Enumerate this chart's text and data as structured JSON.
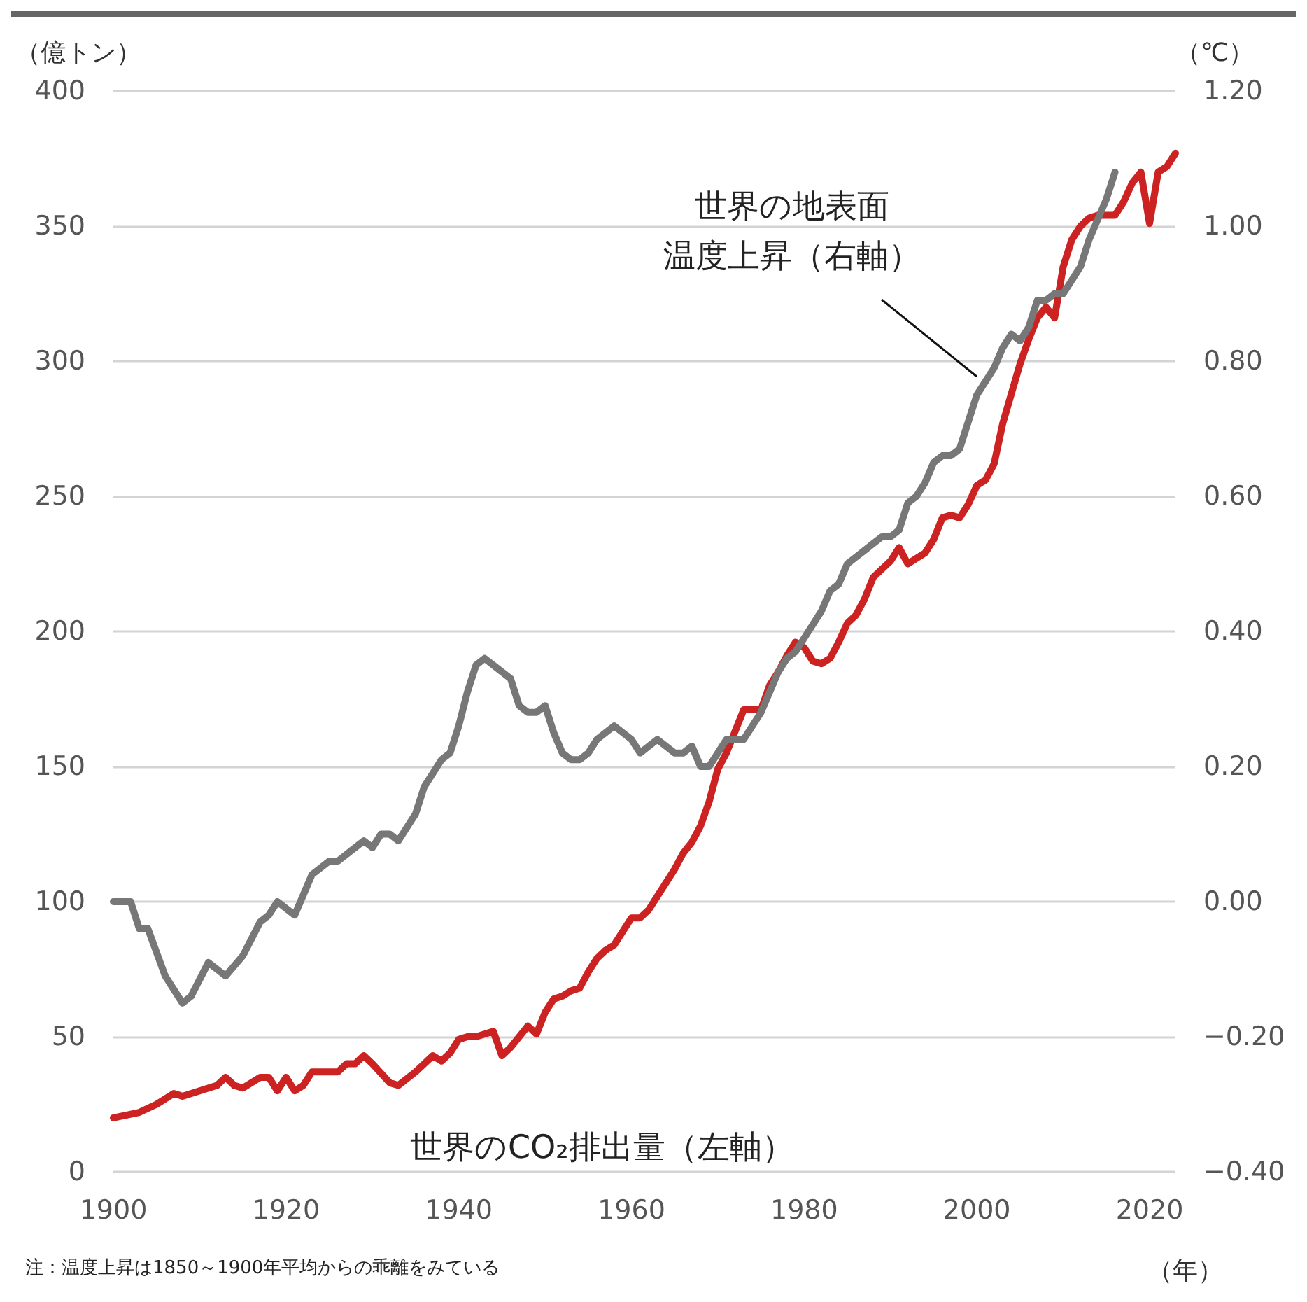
{
  "chart_data": {
    "type": "line",
    "xlabel": "（年）",
    "ylabel": "（億トン）",
    "y2label": "（℃）",
    "annotations": [
      "世界の地表面温度上昇（右軸）",
      "世界のCO₂排出量（左軸）",
      "注：温度上昇は1850～1900年平均からの乖離をみている"
    ],
    "xlim": [
      1900,
      2023
    ],
    "xticks": [
      1900,
      1920,
      1940,
      1960,
      1980,
      2000,
      2020
    ],
    "ylim": [
      0,
      400
    ],
    "yticks": [
      0,
      50,
      100,
      150,
      200,
      250,
      300,
      350,
      400
    ],
    "y2lim": [
      -0.4,
      1.2
    ],
    "y2ticks": [
      {
        "value": -0.4,
        "label": "−0.40"
      },
      {
        "value": -0.2,
        "label": "−0.20"
      },
      {
        "value": 0,
        "label": "0.00"
      },
      {
        "value": 0.2,
        "label": "0.20"
      },
      {
        "value": 0.4,
        "label": "0.40"
      },
      {
        "value": 0.6,
        "label": "0.60"
      },
      {
        "value": 0.8,
        "label": "0.80"
      },
      {
        "value": 1.0,
        "label": "1.00"
      },
      {
        "value": 1.2,
        "label": "1.20"
      }
    ],
    "grid": "y",
    "marker": "none",
    "line_style": "solid",
    "series": [
      {
        "color": "#cc2222",
        "axis": "y",
        "x": [
          1900,
          1903,
          1905,
          1907,
          1908,
          1910,
          1912,
          1913,
          1914,
          1915,
          1917,
          1918,
          1919,
          1920,
          1921,
          1922,
          1923,
          1925,
          1926,
          1927,
          1928,
          1929,
          1930,
          1932,
          1933,
          1935,
          1937,
          1938,
          1939,
          1940,
          1941,
          1942,
          1944,
          1945,
          1946,
          1948,
          1949,
          1950,
          1951,
          1952,
          1953,
          1954,
          1955,
          1956,
          1957,
          1958,
          1959,
          1960,
          1961,
          1962,
          1963,
          1964,
          1965,
          1966,
          1967,
          1968,
          1969,
          1970,
          1971,
          1972,
          1973,
          1974,
          1975,
          1976,
          1977,
          1978,
          1979,
          1980,
          1981,
          1982,
          1983,
          1984,
          1985,
          1986,
          1987,
          1988,
          1989,
          1990,
          1991,
          1992,
          1993,
          1994,
          1995,
          1996,
          1997,
          1998,
          1999,
          2000,
          2001,
          2002,
          2003,
          2004,
          2005,
          2006,
          2007,
          2008,
          2009,
          2010,
          2011,
          2012,
          2013,
          2014,
          2015,
          2016,
          2017,
          2018,
          2019,
          2020,
          2021,
          2022,
          2023
        ],
        "values": [
          20,
          22,
          25,
          29,
          28,
          30,
          32,
          35,
          32,
          31,
          35,
          35,
          30,
          35,
          30,
          32,
          37,
          37,
          37,
          40,
          40,
          43,
          40,
          33,
          32,
          37,
          43,
          41,
          44,
          49,
          50,
          50,
          52,
          43,
          46,
          54,
          51,
          59,
          64,
          65,
          67,
          68,
          74,
          79,
          82,
          84,
          89,
          94,
          94,
          97,
          102,
          107,
          112,
          118,
          122,
          128,
          137,
          149,
          155,
          163,
          171,
          171,
          171,
          180,
          185,
          191,
          196,
          194,
          189,
          188,
          190,
          196,
          203,
          206,
          212,
          220,
          223,
          226,
          231,
          225,
          227,
          229,
          234,
          242,
          243,
          242,
          247,
          254,
          256,
          262,
          277,
          288,
          299,
          308,
          316,
          320,
          316,
          335,
          345,
          350,
          353,
          354,
          354,
          354,
          359,
          366,
          370,
          351,
          370,
          372,
          377
        ]
      },
      {
        "color": "#777777",
        "axis": "y2",
        "x": [
          1900,
          1902,
          1903,
          1904,
          1906,
          1908,
          1909,
          1911,
          1913,
          1915,
          1917,
          1918,
          1919,
          1921,
          1923,
          1925,
          1926,
          1928,
          1929,
          1930,
          1931,
          1932,
          1933,
          1935,
          1936,
          1938,
          1939,
          1940,
          1941,
          1942,
          1943,
          1944,
          1946,
          1947,
          1948,
          1949,
          1950,
          1951,
          1952,
          1953,
          1954,
          1955,
          1956,
          1958,
          1960,
          1961,
          1963,
          1965,
          1966,
          1967,
          1968,
          1969,
          1970,
          1971,
          1973,
          1975,
          1976,
          1977,
          1978,
          1979,
          1980,
          1981,
          1982,
          1983,
          1984,
          1985,
          1986,
          1987,
          1988,
          1989,
          1990,
          1991,
          1992,
          1993,
          1994,
          1995,
          1996,
          1997,
          1998,
          1999,
          2000,
          2001,
          2002,
          2003,
          2004,
          2005,
          2006,
          2007,
          2008,
          2009,
          2010,
          2011,
          2012,
          2013,
          2014,
          2015,
          2016
        ],
        "values": [
          0.0,
          0.0,
          -0.04,
          -0.04,
          -0.11,
          -0.15,
          -0.14,
          -0.09,
          -0.11,
          -0.08,
          -0.03,
          -0.02,
          0.0,
          -0.02,
          0.04,
          0.06,
          0.06,
          0.08,
          0.09,
          0.08,
          0.1,
          0.1,
          0.09,
          0.13,
          0.17,
          0.21,
          0.22,
          0.26,
          0.31,
          0.35,
          0.36,
          0.35,
          0.33,
          0.29,
          0.28,
          0.28,
          0.29,
          0.25,
          0.22,
          0.21,
          0.21,
          0.22,
          0.24,
          0.26,
          0.24,
          0.22,
          0.24,
          0.22,
          0.22,
          0.23,
          0.2,
          0.2,
          0.22,
          0.24,
          0.24,
          0.28,
          0.31,
          0.34,
          0.36,
          0.37,
          0.39,
          0.41,
          0.43,
          0.46,
          0.47,
          0.5,
          0.51,
          0.52,
          0.53,
          0.54,
          0.54,
          0.55,
          0.59,
          0.6,
          0.62,
          0.65,
          0.66,
          0.66,
          0.67,
          0.71,
          0.75,
          0.77,
          0.79,
          0.82,
          0.84,
          0.83,
          0.85,
          0.89,
          0.89,
          0.9,
          0.9,
          0.92,
          0.94,
          0.98,
          1.01,
          1.04,
          1.08
        ]
      }
    ]
  }
}
